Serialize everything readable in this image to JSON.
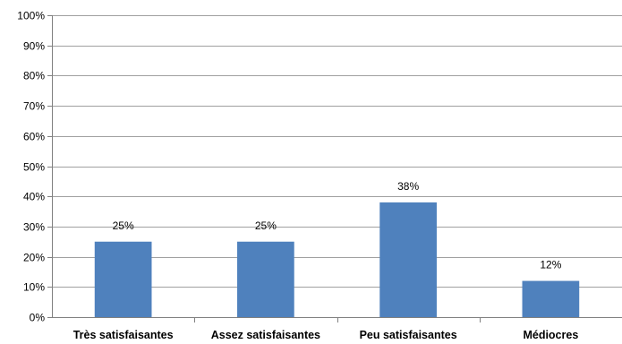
{
  "chart_data": {
    "type": "bar",
    "title": "",
    "xlabel": "",
    "ylabel": "",
    "categories": [
      "Très satisfaisantes",
      "Assez satisfaisantes",
      "Peu satisfaisantes",
      "Médiocres"
    ],
    "values": [
      25,
      25,
      38,
      12
    ],
    "data_labels": [
      "25%",
      "25%",
      "38%",
      "12%"
    ],
    "ylim": [
      0,
      100
    ],
    "yticks": [
      "0%",
      "10%",
      "20%",
      "30%",
      "40%",
      "50%",
      "60%",
      "70%",
      "80%",
      "90%",
      "100%"
    ],
    "grid": true,
    "legend": "none",
    "bar_color": "#4f81bd"
  }
}
